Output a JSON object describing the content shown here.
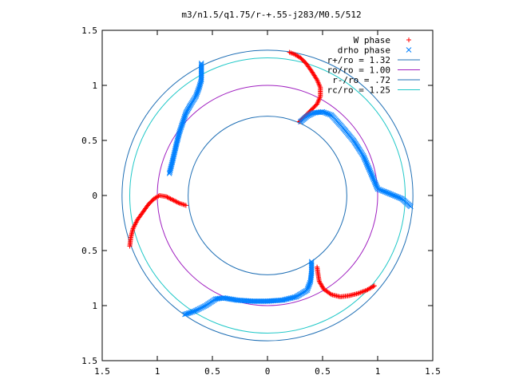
{
  "chart_data": {
    "type": "scatter",
    "title": "m3/n1.5/q1.75/r-+.55-j283/M0.5/512",
    "xlabel": "",
    "ylabel": "",
    "xlim": [
      -1.5,
      1.5
    ],
    "ylim": [
      -1.5,
      1.5
    ],
    "x_ticks": [
      -1.5,
      -1,
      -0.5,
      0,
      0.5,
      1,
      1.5
    ],
    "y_ticks": [
      -1.5,
      -1,
      -0.5,
      0,
      0.5,
      1,
      1.5
    ],
    "x_tick_labels": [
      "1.5",
      "1",
      "0.5",
      "0",
      "0.5",
      "1",
      "1.5"
    ],
    "y_tick_labels": [
      "1.5",
      "1",
      "0.5",
      "0",
      "0.5",
      "1",
      "1.5"
    ],
    "grid": false,
    "legend_position": "top-right",
    "series": [
      {
        "name": "W phase",
        "type": "scatter",
        "marker": "+",
        "color": "#ff0000",
        "points": [
          [
            0.2,
            1.3
          ],
          [
            0.25,
            1.28
          ],
          [
            0.3,
            1.25
          ],
          [
            0.35,
            1.2
          ],
          [
            0.4,
            1.13
          ],
          [
            0.45,
            1.05
          ],
          [
            0.48,
            0.98
          ],
          [
            0.48,
            0.9
          ],
          [
            0.45,
            0.83
          ],
          [
            0.38,
            0.76
          ],
          [
            0.32,
            0.7
          ],
          [
            0.29,
            0.67
          ],
          [
            -1.25,
            -0.46
          ],
          [
            -1.24,
            -0.38
          ],
          [
            -1.22,
            -0.3
          ],
          [
            -1.18,
            -0.22
          ],
          [
            -1.13,
            -0.15
          ],
          [
            -1.08,
            -0.08
          ],
          [
            -1.03,
            -0.03
          ],
          [
            -0.98,
            0.0
          ],
          [
            -0.92,
            -0.01
          ],
          [
            -0.86,
            -0.04
          ],
          [
            -0.8,
            -0.07
          ],
          [
            -0.74,
            -0.09
          ],
          [
            0.97,
            -0.82
          ],
          [
            0.9,
            -0.86
          ],
          [
            0.82,
            -0.89
          ],
          [
            0.74,
            -0.91
          ],
          [
            0.66,
            -0.92
          ],
          [
            0.58,
            -0.9
          ],
          [
            0.51,
            -0.85
          ],
          [
            0.47,
            -0.78
          ],
          [
            0.46,
            -0.72
          ],
          [
            0.45,
            -0.65
          ]
        ]
      },
      {
        "name": "drho phase",
        "type": "scatter",
        "marker": "x",
        "color": "#0080ff",
        "points": [
          [
            -0.6,
            1.2
          ],
          [
            -0.6,
            1.12
          ],
          [
            -0.6,
            1.05
          ],
          [
            -0.62,
            0.98
          ],
          [
            -0.65,
            0.9
          ],
          [
            -0.7,
            0.82
          ],
          [
            -0.74,
            0.75
          ],
          [
            -0.77,
            0.66
          ],
          [
            -0.8,
            0.57
          ],
          [
            -0.83,
            0.45
          ],
          [
            -0.86,
            0.32
          ],
          [
            -0.89,
            0.2
          ],
          [
            0.3,
            0.67
          ],
          [
            0.36,
            0.72
          ],
          [
            0.42,
            0.75
          ],
          [
            0.5,
            0.76
          ],
          [
            0.58,
            0.73
          ],
          [
            0.68,
            0.62
          ],
          [
            0.78,
            0.5
          ],
          [
            0.87,
            0.36
          ],
          [
            0.94,
            0.2
          ],
          [
            1.0,
            0.06
          ],
          [
            1.1,
            0.02
          ],
          [
            1.22,
            -0.03
          ],
          [
            1.3,
            -0.1
          ],
          [
            -0.75,
            -1.08
          ],
          [
            -0.66,
            -1.05
          ],
          [
            -0.56,
            -1.0
          ],
          [
            -0.47,
            -0.94
          ],
          [
            -0.4,
            -0.93
          ],
          [
            -0.28,
            -0.95
          ],
          [
            -0.14,
            -0.96
          ],
          [
            0.0,
            -0.96
          ],
          [
            0.14,
            -0.95
          ],
          [
            0.26,
            -0.92
          ],
          [
            0.36,
            -0.86
          ],
          [
            0.39,
            -0.78
          ],
          [
            0.4,
            -0.7
          ],
          [
            0.4,
            -0.6
          ]
        ]
      },
      {
        "name": "r+/ro = 1.32",
        "type": "circle",
        "radius": 1.32,
        "color": "#1f6fb5"
      },
      {
        "name": "ro/ro = 1.00",
        "type": "circle",
        "radius": 1.0,
        "color": "#a020c0"
      },
      {
        "name": "r-/ro = .72",
        "type": "circle",
        "radius": 0.72,
        "color": "#1f6fb5"
      },
      {
        "name": "rc/ro = 1.25",
        "type": "circle",
        "radius": 1.25,
        "color": "#20c8c8"
      }
    ]
  }
}
